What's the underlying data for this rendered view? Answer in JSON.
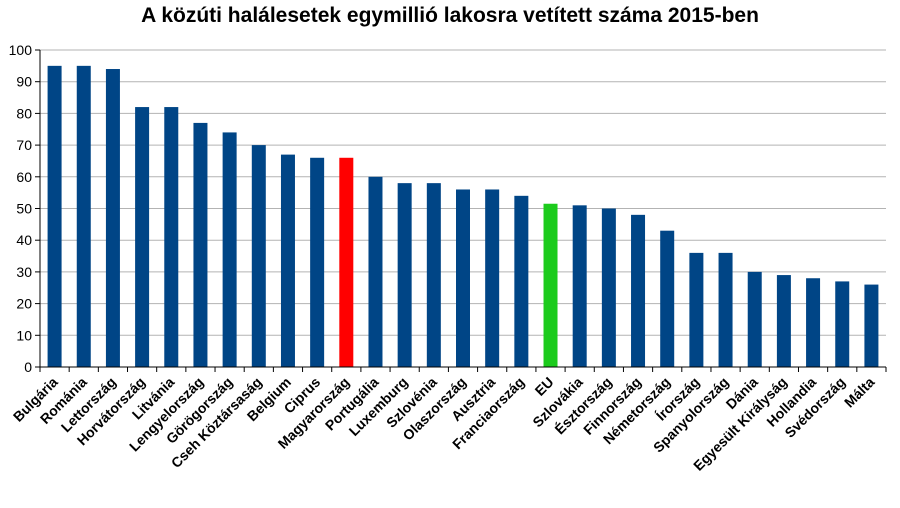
{
  "chart_data": {
    "type": "bar",
    "title": "A közúti halálesetek egymillió lakosra vetített száma 2015-ben",
    "xlabel": "",
    "ylabel": "",
    "ylim": [
      0,
      100
    ],
    "yticks": [
      0,
      10,
      20,
      30,
      40,
      50,
      60,
      70,
      80,
      90,
      100
    ],
    "grid": true,
    "categories": [
      "Bulgária",
      "Románia",
      "Lettország",
      "Horvátország",
      "Litvánia",
      "Lengyelország",
      "Görögország",
      "Cseh Köztársaság",
      "Belgium",
      "Ciprus",
      "Magyarország",
      "Portugália",
      "Luxemburg",
      "Szlovénia",
      "Olaszország",
      "Ausztria",
      "Franciaország",
      "EU",
      "Szlovákia",
      "Észtország",
      "Finnország",
      "Németország",
      "Írország",
      "Spanyolország",
      "Dánia",
      "Egyesült Királyság",
      "Hollandia",
      "Svédország",
      "Málta"
    ],
    "values": [
      95,
      95,
      94,
      82,
      82,
      77,
      74,
      70,
      67,
      66,
      66,
      60,
      58,
      58,
      56,
      56,
      54,
      51.5,
      51,
      50,
      48,
      43,
      36,
      36,
      30,
      29,
      28,
      27,
      26
    ],
    "colors": {
      "default": "#004586",
      "highlight": "#ff0000",
      "eu": "#1ccb1c",
      "grid": "#b3b3b3",
      "axis": "#000000"
    },
    "highlight_category": "Magyarország",
    "eu_category": "EU"
  }
}
